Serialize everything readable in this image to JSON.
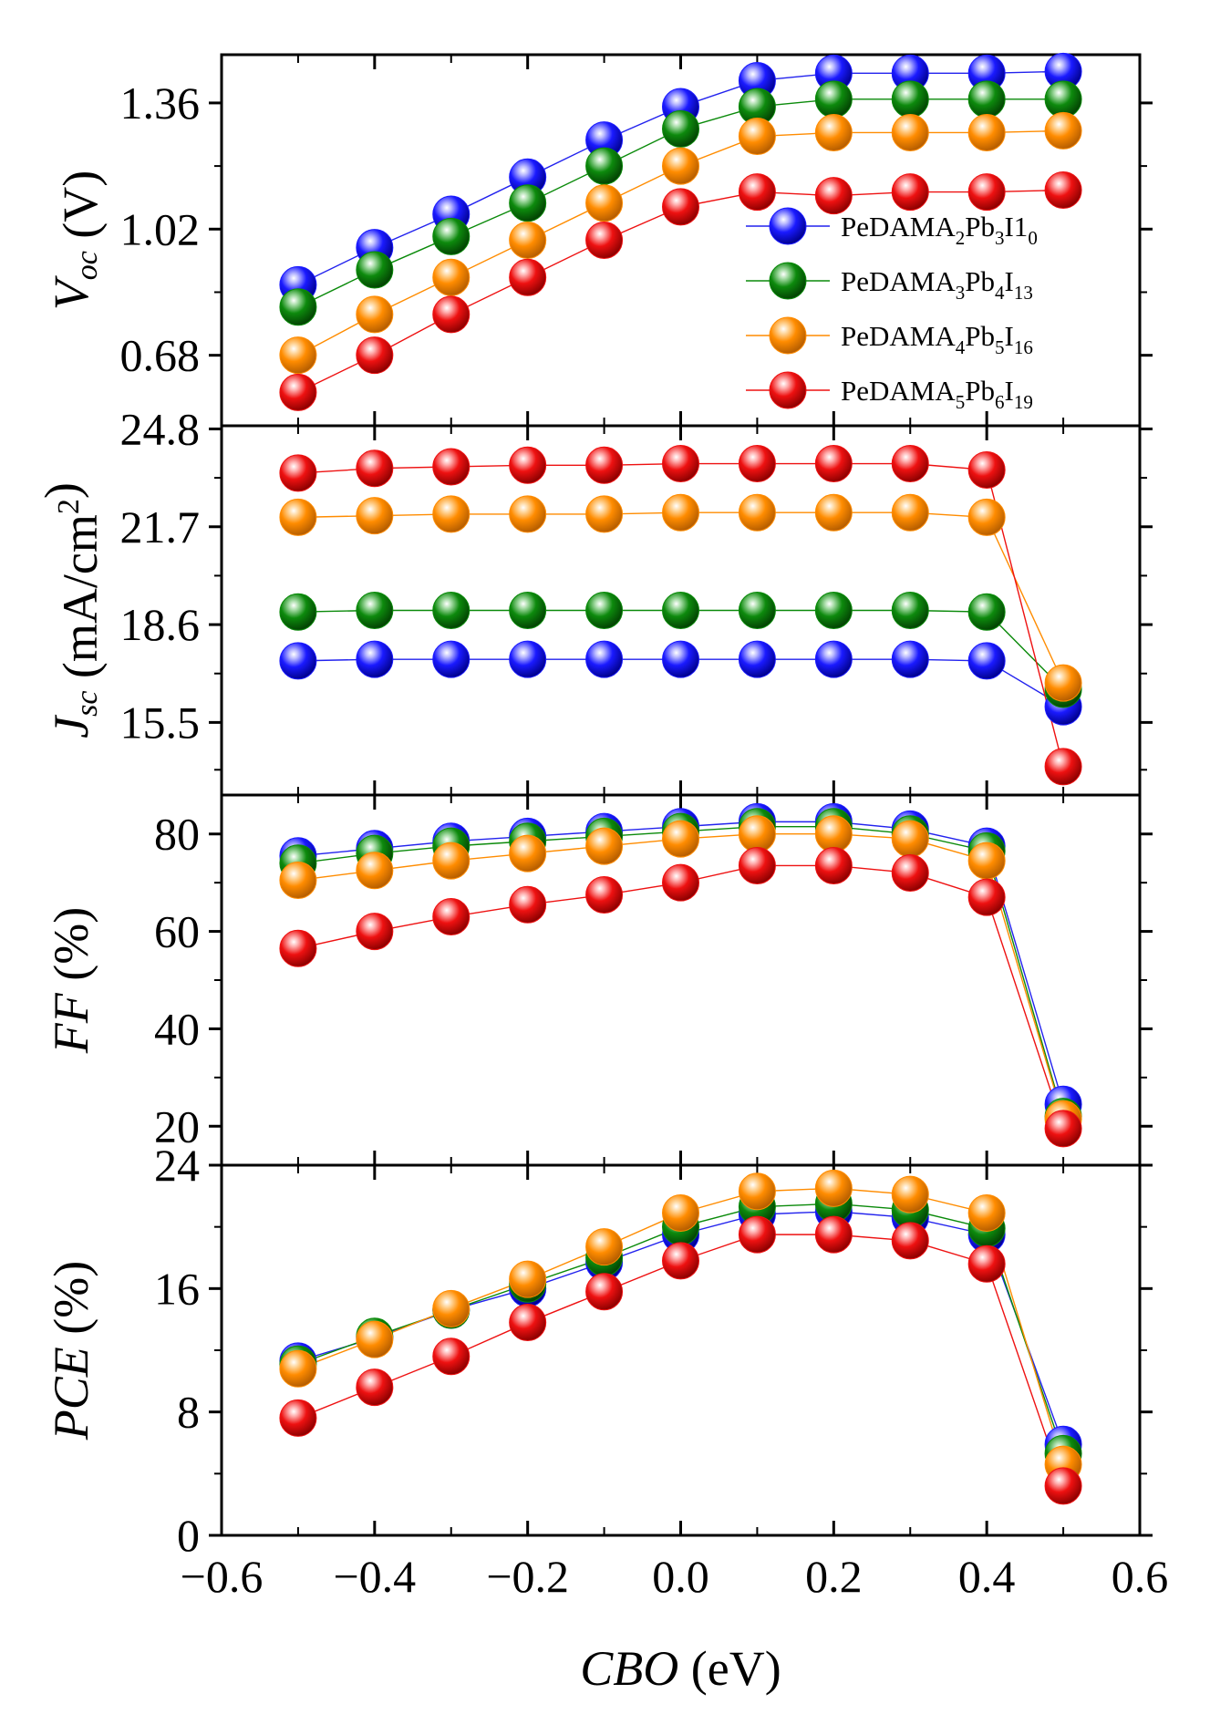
{
  "chart_data": {
    "type": "scatter",
    "xlabel": {
      "italic": "CBO",
      "rest": " (eV)"
    },
    "xlim": [
      -0.6,
      0.6
    ],
    "x_ticks": [
      "−0.6",
      "−0.4",
      "−0.2",
      "0.0",
      "0.2",
      "0.4",
      "0.6"
    ],
    "x": [
      -0.5,
      -0.4,
      -0.3,
      -0.2,
      -0.1,
      0.0,
      0.1,
      0.2,
      0.3,
      0.4,
      0.5
    ],
    "series_styles": [
      {
        "name": "PeDAMA2Pb3I10",
        "color": "#1a1aff",
        "line": "#2222ee"
      },
      {
        "name": "PeDAMA3Pb4I13",
        "color": "#0a8a0a",
        "line": "#0a8a0a"
      },
      {
        "name": "PeDAMA4Pb5I16",
        "color": "#ff8c00",
        "line": "#ff8c00"
      },
      {
        "name": "PeDAMA5Pb6I19",
        "color": "#ee1111",
        "line": "#ee1111"
      }
    ],
    "legend": {
      "placement": "right, inside top panel",
      "entries": [
        {
          "base": "PeDAMA",
          "s1": "2",
          "mid": "Pb",
          "s2": "3",
          "end": "I1",
          "s3": "0"
        },
        {
          "base": "PeDAMA",
          "s1": "3",
          "mid": "Pb",
          "s2": "4",
          "end": "I",
          "s3": "13"
        },
        {
          "base": "PeDAMA",
          "s1": "4",
          "mid": "Pb",
          "s2": "5",
          "end": "I",
          "s3": "16"
        },
        {
          "base": "PeDAMA",
          "s1": "5",
          "mid": "Pb",
          "s2": "6",
          "end": "I",
          "s3": "19"
        }
      ]
    },
    "panels": [
      {
        "id": "voc",
        "ylabel_parts": [
          {
            "t": "V",
            "italic": true
          },
          {
            "t": "oc",
            "italic": true,
            "sub": true
          },
          {
            "t": " (V)"
          }
        ],
        "ylim": [
          0.49,
          1.49
        ],
        "yticks": [
          0.68,
          1.02,
          1.36
        ],
        "ytick_labels": [
          "0.68",
          "1.02",
          "1.36"
        ],
        "minor": [
          0.85,
          1.19
        ],
        "series": [
          [
            0.87,
            0.97,
            1.06,
            1.16,
            1.26,
            1.35,
            1.42,
            1.44,
            1.44,
            1.44,
            1.445
          ],
          [
            0.81,
            0.91,
            1.0,
            1.09,
            1.19,
            1.29,
            1.35,
            1.37,
            1.37,
            1.37,
            1.37
          ],
          [
            0.68,
            0.79,
            0.89,
            0.99,
            1.09,
            1.19,
            1.27,
            1.28,
            1.28,
            1.28,
            1.285
          ],
          [
            0.58,
            0.68,
            0.79,
            0.89,
            0.99,
            1.08,
            1.12,
            1.11,
            1.12,
            1.12,
            1.125
          ]
        ]
      },
      {
        "id": "jsc",
        "ylabel_parts": [
          {
            "t": "J",
            "italic": true
          },
          {
            "t": "sc",
            "italic": true,
            "sub": true
          },
          {
            "t": " (mA/cm"
          },
          {
            "t": "2",
            "sup": true
          },
          {
            "t": ")"
          }
        ],
        "ylim": [
          13.2,
          24.9
        ],
        "yticks": [
          15.5,
          18.6,
          21.7,
          24.8
        ],
        "ytick_labels": [
          "15.5",
          "18.6",
          "21.7",
          "24.8"
        ],
        "minor": [
          14.0,
          17.05,
          20.15,
          23.25
        ],
        "series": [
          [
            17.45,
            17.5,
            17.5,
            17.5,
            17.5,
            17.5,
            17.5,
            17.5,
            17.5,
            17.45,
            16.0
          ],
          [
            19.0,
            19.05,
            19.05,
            19.05,
            19.05,
            19.05,
            19.05,
            19.05,
            19.05,
            19.0,
            16.55
          ],
          [
            22.0,
            22.05,
            22.1,
            22.1,
            22.1,
            22.15,
            22.15,
            22.15,
            22.15,
            22.0,
            16.75
          ],
          [
            23.4,
            23.55,
            23.6,
            23.65,
            23.65,
            23.7,
            23.7,
            23.7,
            23.7,
            23.5,
            14.1
          ]
        ]
      },
      {
        "id": "ff",
        "ylabel_parts": [
          {
            "t": "FF",
            "italic": true
          },
          {
            "t": " (%)"
          }
        ],
        "ylim": [
          12,
          88
        ],
        "yticks": [
          20,
          40,
          60,
          80
        ],
        "ytick_labels": [
          "20",
          "40",
          "60",
          "80"
        ],
        "minor": [
          30,
          50,
          70
        ],
        "series": [
          [
            75.5,
            77,
            78.5,
            79.5,
            80.5,
            81.5,
            82.5,
            82.5,
            81,
            77.5,
            24.5
          ],
          [
            74,
            76,
            77.5,
            78.5,
            79.5,
            80.5,
            81.5,
            81.5,
            80,
            76.5,
            22
          ],
          [
            70.5,
            72.5,
            74.5,
            76,
            77.5,
            79,
            80,
            80,
            79,
            74.5,
            21.5
          ],
          [
            56.5,
            60,
            63,
            65.5,
            67.5,
            70,
            73.5,
            73.5,
            72,
            67,
            19.5
          ]
        ]
      },
      {
        "id": "pce",
        "ylabel_parts": [
          {
            "t": "PCE",
            "italic": true
          },
          {
            "t": " (%)"
          }
        ],
        "ylim": [
          0,
          24
        ],
        "yticks": [
          0,
          8,
          16,
          24
        ],
        "ytick_labels": [
          "0",
          "8",
          "16",
          "24"
        ],
        "minor": [
          4,
          12,
          20
        ],
        "series": [
          [
            11.3,
            12.8,
            14.6,
            16.0,
            17.7,
            19.5,
            20.8,
            21.0,
            20.6,
            19.5,
            5.9
          ],
          [
            11.1,
            12.9,
            14.6,
            16.3,
            18.0,
            20.0,
            21.3,
            21.5,
            21.1,
            19.9,
            5.3
          ],
          [
            10.8,
            12.7,
            14.7,
            16.6,
            18.7,
            20.9,
            22.3,
            22.5,
            22.1,
            20.9,
            4.6
          ],
          [
            7.6,
            9.6,
            11.6,
            13.8,
            15.8,
            17.8,
            19.5,
            19.5,
            19.1,
            17.6,
            3.2
          ]
        ]
      }
    ]
  }
}
